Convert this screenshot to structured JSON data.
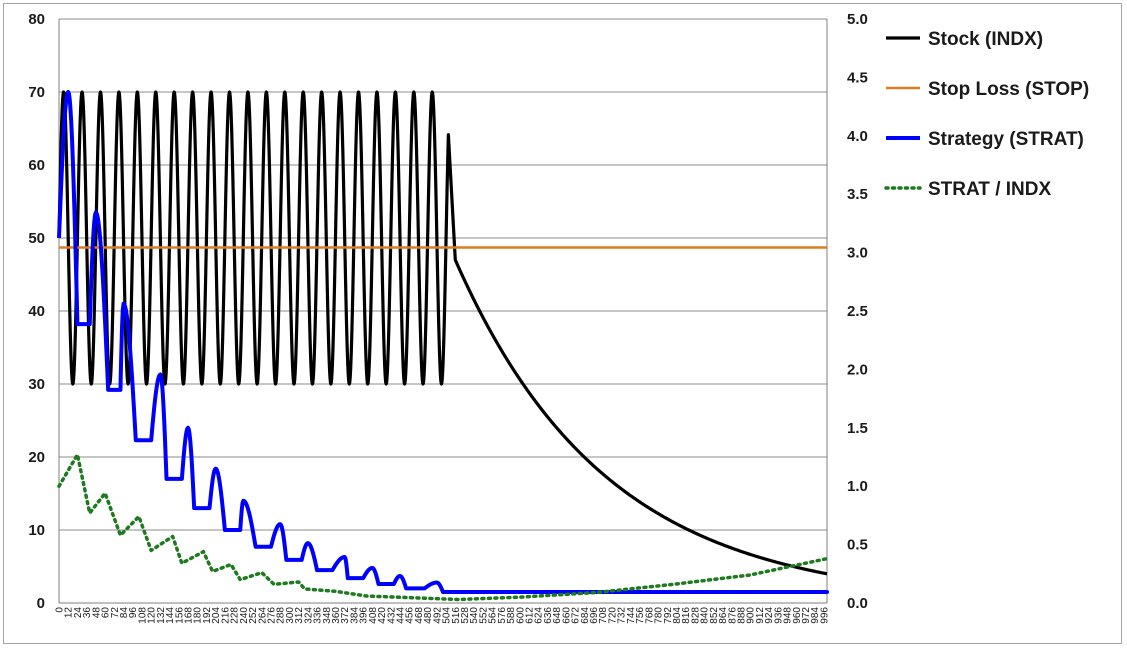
{
  "chart_data": {
    "type": "line",
    "title": "",
    "xlabel": "",
    "ylabel": "",
    "y2label": "",
    "ylim": [
      0,
      80
    ],
    "y2lim": [
      0,
      5
    ],
    "xlim": [
      0,
      1000
    ],
    "yticks": [
      0,
      10,
      20,
      30,
      40,
      50,
      60,
      70,
      80
    ],
    "y2ticks": [
      "0.0",
      "0.5",
      "1.0",
      "1.5",
      "2.0",
      "2.5",
      "3.0",
      "3.5",
      "4.0",
      "4.5",
      "5.0"
    ],
    "xtick_step": 12,
    "xtick_last": 996,
    "grid": "horizontal",
    "legend_position": "right",
    "series": [
      {
        "name": "Stock (INDX)",
        "axis": "left",
        "color": "#000000",
        "style": "solid",
        "description_points": {
          "oscillation": {
            "start_x": 0,
            "end_x": 507,
            "min": 30,
            "max": 70,
            "start_value": 50,
            "period": 24
          },
          "last_oscillation_value": 30,
          "jump": {
            "x": 516,
            "value": 47
          },
          "decay_end": {
            "x": 1000,
            "value": 4
          }
        }
      },
      {
        "name": "Stop Loss (STOP)",
        "axis": "left",
        "color": "#e07b22",
        "style": "solid",
        "constant_value": 48.7
      },
      {
        "name": "Strategy (STRAT)",
        "axis": "left",
        "color": "#0000ff",
        "style": "solid",
        "peaks": [
          {
            "x": 12,
            "value": 70
          },
          {
            "x": 48,
            "value": 53.5
          },
          {
            "x": 84,
            "value": 41
          },
          {
            "x": 132,
            "value": 31.3
          },
          {
            "x": 168,
            "value": 24
          },
          {
            "x": 204,
            "value": 18.4
          },
          {
            "x": 240,
            "value": 14
          },
          {
            "x": 288,
            "value": 10.8
          },
          {
            "x": 324,
            "value": 8.2
          },
          {
            "x": 372,
            "value": 6.3
          },
          {
            "x": 408,
            "value": 4.8
          },
          {
            "x": 444,
            "value": 3.7
          },
          {
            "x": 492,
            "value": 2.8
          }
        ],
        "troughs": [
          {
            "x_start": 24,
            "x_end": 40,
            "value": 38.2
          },
          {
            "x_start": 64,
            "x_end": 80,
            "value": 29.2
          },
          {
            "x_start": 100,
            "x_end": 120,
            "value": 22.3
          },
          {
            "x_start": 140,
            "x_end": 160,
            "value": 17
          },
          {
            "x_start": 176,
            "x_end": 196,
            "value": 13
          },
          {
            "x_start": 216,
            "x_end": 236,
            "value": 10
          },
          {
            "x_start": 256,
            "x_end": 276,
            "value": 7.7
          },
          {
            "x_start": 296,
            "x_end": 316,
            "value": 5.9
          },
          {
            "x_start": 336,
            "x_end": 356,
            "value": 4.5
          },
          {
            "x_start": 376,
            "x_end": 396,
            "value": 3.4
          },
          {
            "x_start": 416,
            "x_end": 436,
            "value": 2.6
          },
          {
            "x_start": 452,
            "x_end": 476,
            "value": 2
          },
          {
            "x_start": 500,
            "x_end": 1000,
            "value": 1.5
          }
        ]
      },
      {
        "name": "STRAT / INDX",
        "axis": "right",
        "color": "#1f7a1f",
        "style": "dotted",
        "key_points": [
          {
            "x": 0,
            "value": 1.0
          },
          {
            "x": 24,
            "value": 1.27
          },
          {
            "x": 40,
            "value": 0.77
          },
          {
            "x": 60,
            "value": 0.94
          },
          {
            "x": 80,
            "value": 0.58
          },
          {
            "x": 104,
            "value": 0.74
          },
          {
            "x": 120,
            "value": 0.45
          },
          {
            "x": 148,
            "value": 0.57
          },
          {
            "x": 160,
            "value": 0.34
          },
          {
            "x": 188,
            "value": 0.44
          },
          {
            "x": 200,
            "value": 0.27
          },
          {
            "x": 224,
            "value": 0.33
          },
          {
            "x": 236,
            "value": 0.2
          },
          {
            "x": 264,
            "value": 0.26
          },
          {
            "x": 280,
            "value": 0.16
          },
          {
            "x": 312,
            "value": 0.18
          },
          {
            "x": 320,
            "value": 0.12
          },
          {
            "x": 360,
            "value": 0.1
          },
          {
            "x": 400,
            "value": 0.06
          },
          {
            "x": 440,
            "value": 0.05
          },
          {
            "x": 500,
            "value": 0.035
          },
          {
            "x": 520,
            "value": 0.03
          },
          {
            "x": 600,
            "value": 0.05
          },
          {
            "x": 700,
            "value": 0.09
          },
          {
            "x": 800,
            "value": 0.16
          },
          {
            "x": 900,
            "value": 0.24
          },
          {
            "x": 1000,
            "value": 0.38
          }
        ]
      }
    ]
  }
}
